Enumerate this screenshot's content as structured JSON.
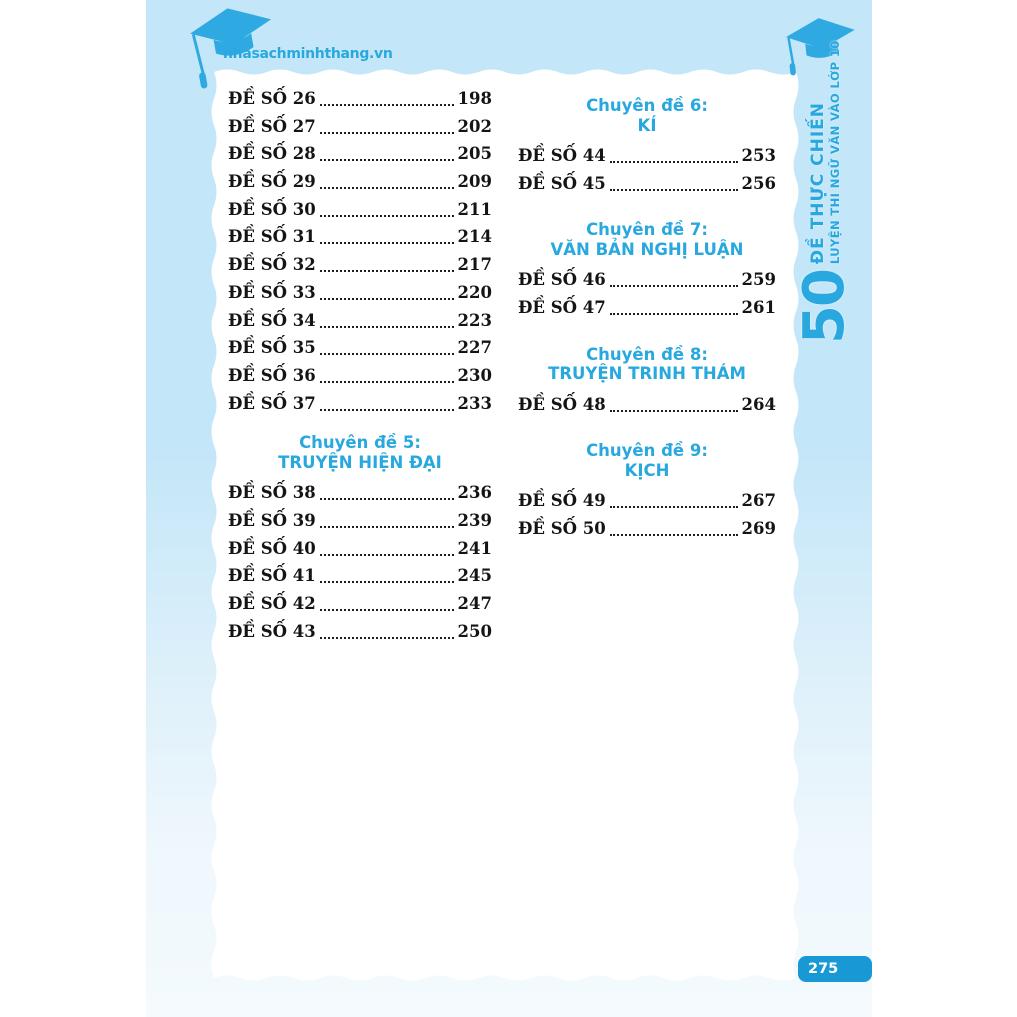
{
  "brand": {
    "site": "nhasachminhthang.vn",
    "icon": "graduation-cap-icon"
  },
  "corner_icon": "graduation-cap-icon",
  "spine": {
    "big_number": "50",
    "line1": "ĐỀ THỰC CHIẾN",
    "line2": "LUYỆN THI NGỮ VĂN VÀO LỚP 10"
  },
  "page_badge": "275",
  "toc": {
    "left_column": {
      "entries": [
        {
          "label": "ĐỀ SỐ 26",
          "page": "198"
        },
        {
          "label": "ĐỀ SỐ 27",
          "page": "202"
        },
        {
          "label": "ĐỀ SỐ 28",
          "page": "205"
        },
        {
          "label": "ĐỀ SỐ 29",
          "page": "209"
        },
        {
          "label": "ĐỀ SỐ 30",
          "page": "211"
        },
        {
          "label": "ĐỀ SỐ 31",
          "page": "214"
        },
        {
          "label": "ĐỀ SỐ 32",
          "page": "217"
        },
        {
          "label": "ĐỀ SỐ 33",
          "page": "220"
        },
        {
          "label": "ĐỀ SỐ 34",
          "page": "223"
        },
        {
          "label": "ĐỀ SỐ 35",
          "page": "227"
        },
        {
          "label": "ĐỀ SỐ 36",
          "page": "230"
        },
        {
          "label": "ĐỀ SỐ 37",
          "page": "233"
        }
      ],
      "section": {
        "line1": "Chuyên đề 5:",
        "line2": "TRUYỆN HIỆN ĐẠI",
        "entries": [
          {
            "label": "ĐỀ SỐ 38",
            "page": "236"
          },
          {
            "label": "ĐỀ SỐ 39",
            "page": "239"
          },
          {
            "label": "ĐỀ SỐ 40",
            "page": "241"
          },
          {
            "label": "ĐỀ SỐ 41",
            "page": "245"
          },
          {
            "label": "ĐỀ SỐ 42",
            "page": "247"
          },
          {
            "label": "ĐỀ SỐ 43",
            "page": "250"
          }
        ]
      }
    },
    "right_column": {
      "sections": [
        {
          "line1": "Chuyên đề 6:",
          "line2": "KÍ",
          "entries": [
            {
              "label": "ĐỀ SỐ 44",
              "page": "253"
            },
            {
              "label": "ĐỀ SỐ 45",
              "page": "256"
            }
          ]
        },
        {
          "line1": "Chuyên đề 7:",
          "line2": "VĂN BẢN NGHỊ LUẬN",
          "entries": [
            {
              "label": "ĐỀ SỐ 46",
              "page": "259"
            },
            {
              "label": "ĐỀ SỐ 47",
              "page": "261"
            }
          ]
        },
        {
          "line1": "Chuyên đề 8:",
          "line2": "TRUYỆN TRINH THÁM",
          "entries": [
            {
              "label": "ĐỀ SỐ 48",
              "page": "264"
            }
          ]
        },
        {
          "line1": "Chuyên đề 9:",
          "line2": "KỊCH",
          "entries": [
            {
              "label": "ĐỀ SỐ 49",
              "page": "267"
            },
            {
              "label": "ĐỀ SỐ 50",
              "page": "269"
            }
          ]
        }
      ]
    }
  },
  "colors": {
    "accent": "#29a8df",
    "badge_bg": "#1899d6",
    "cap": "#2fa9e1",
    "page_top": "#c3e6f8",
    "body_text": "#141414",
    "dots": "#1e1e1e"
  }
}
